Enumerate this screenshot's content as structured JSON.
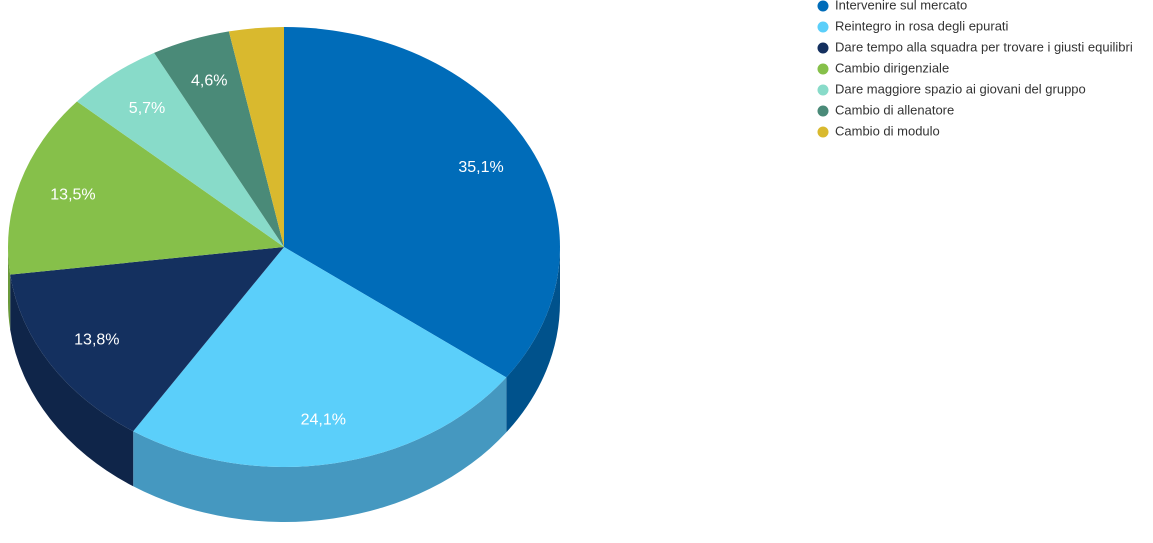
{
  "chart_data": {
    "type": "pie",
    "categories": [
      "Intervenire sul mercato",
      "Reintegro in rosa degli epurati",
      "Dare tempo alla squadra per trovare i giusti equilibri",
      "Cambio dirigenziale",
      "Dare maggiore spazio ai giovani del gruppo",
      "Cambio di allenatore",
      "Cambio di modulo"
    ],
    "values": [
      35.1,
      24.1,
      13.8,
      13.5,
      5.7,
      4.6,
      3.2
    ],
    "value_labels": [
      "35,1%",
      "24,1%",
      "13,8%",
      "13,5%",
      "5,7%",
      "4,6%",
      null
    ],
    "colors": [
      "#006cb9",
      "#5bcffa",
      "#14305f",
      "#86c04a",
      "#88dbc9",
      "#4a8a78",
      "#d9b92e"
    ],
    "side_colors": [
      "#00528c",
      "#4598c0",
      "#0f2549",
      "#6a9a3a",
      "#6cb0a0",
      "#3a6e60",
      "#ad9424"
    ],
    "legend": "top-right"
  }
}
